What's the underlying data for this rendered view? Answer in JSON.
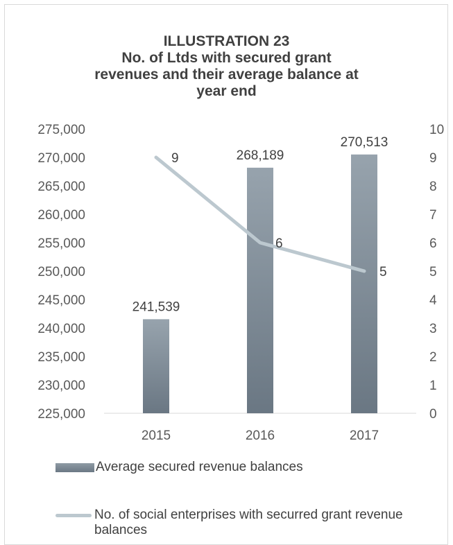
{
  "chart_data": {
    "type": "bar",
    "title_lines": [
      "ILLUSTRATION 23",
      "No. of Ltds with secured grant",
      "revenues and their average balance at",
      "year end"
    ],
    "categories": [
      "2015",
      "2016",
      "2017"
    ],
    "series": [
      {
        "name": "Average secured revenue balances",
        "type": "bar",
        "axis": "left",
        "values": [
          241539,
          268189,
          270513
        ],
        "labels": [
          "241,539",
          "268,189",
          "270,513"
        ],
        "color": "#7d8a95"
      },
      {
        "name": "No. of social enterprises with securred grant revenue balances",
        "type": "line",
        "axis": "right",
        "values": [
          9,
          6,
          5
        ],
        "labels": [
          "9",
          "6",
          "5"
        ],
        "color": "#bcc8cf"
      }
    ],
    "y_left": {
      "min": 225000,
      "max": 275000,
      "step": 5000,
      "ticks": [
        "225,000",
        "230,000",
        "235,000",
        "240,000",
        "245,000",
        "250,000",
        "255,000",
        "260,000",
        "265,000",
        "270,000",
        "275,000"
      ]
    },
    "y_right": {
      "min": 0,
      "max": 10,
      "step": 1,
      "ticks": [
        "0",
        "1",
        "2",
        "3",
        "4",
        "5",
        "6",
        "7",
        "8",
        "9",
        "10"
      ]
    },
    "grid": false,
    "legend_position": "bottom"
  },
  "legend": {
    "bar_label": "Average secured revenue balances",
    "line_label": "No. of social enterprises with securred grant revenue balances"
  }
}
